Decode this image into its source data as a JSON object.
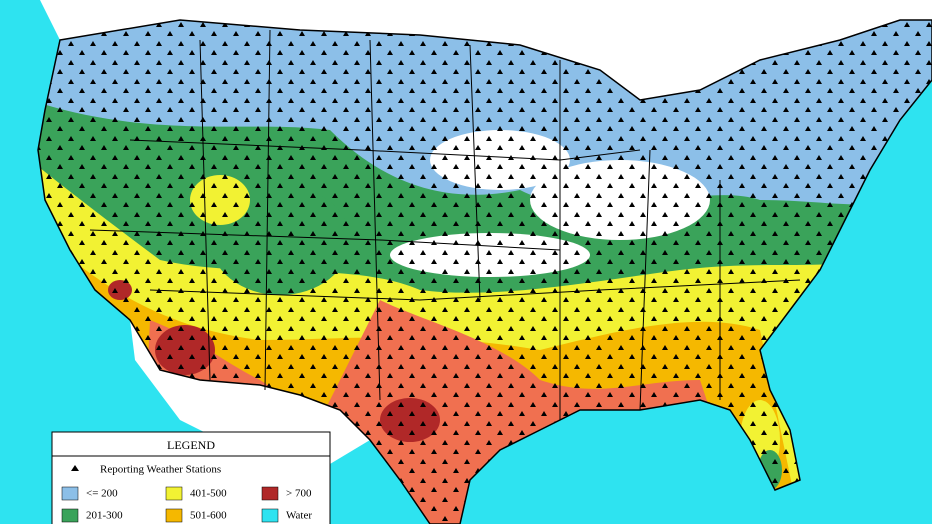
{
  "legend": {
    "title": "LEGEND",
    "stations_label": "Reporting Weather Stations",
    "items": [
      {
        "label": "<= 200",
        "color": "#8cbfe8"
      },
      {
        "label": "401-500",
        "color": "#f2f233"
      },
      {
        "label": "> 700",
        "color": "#b02828"
      },
      {
        "label": "201-300",
        "color": "#3aa35a"
      },
      {
        "label": "501-600",
        "color": "#f5b800"
      },
      {
        "label": "Water",
        "color": "#2ee3f0"
      }
    ]
  }
}
